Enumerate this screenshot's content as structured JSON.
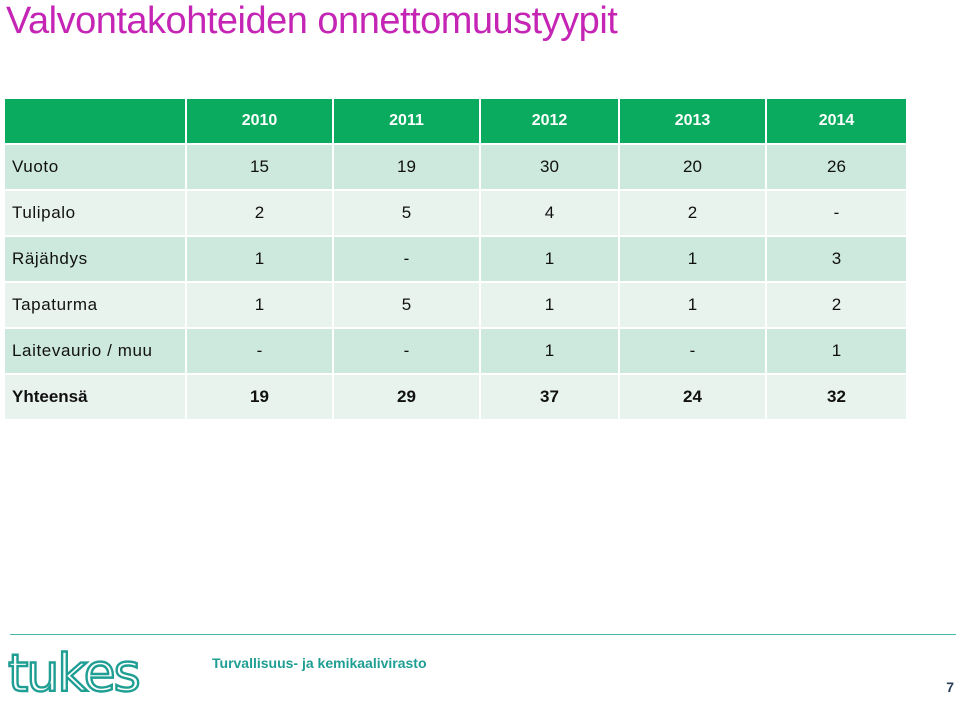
{
  "slide": {
    "title": "Valvontakohteiden onnettomuustyypit",
    "page_number": "7"
  },
  "table": {
    "corner": "",
    "years": [
      "2010",
      "2011",
      "2012",
      "2013",
      "2014"
    ],
    "rows": [
      {
        "label": "Vuoto",
        "values": [
          "15",
          "19",
          "30",
          "20",
          "26"
        ]
      },
      {
        "label": "Tulipalo",
        "values": [
          "2",
          "5",
          "4",
          "2",
          "-"
        ]
      },
      {
        "label": "Räjähdys",
        "values": [
          "1",
          "-",
          "1",
          "1",
          "3"
        ]
      },
      {
        "label": "Tapaturma",
        "values": [
          "1",
          "5",
          "1",
          "1",
          "2"
        ]
      },
      {
        "label": "Laitevaurio / muu",
        "values": [
          "-",
          "-",
          "1",
          "-",
          "1"
        ]
      }
    ],
    "total": {
      "label": "Yhteensä",
      "values": [
        "19",
        "29",
        "37",
        "24",
        "32"
      ]
    }
  },
  "footer": {
    "logo_text": "tukes",
    "agency": "Turvallisuus- ja kemikaalivirasto"
  },
  "colors": {
    "title": "#c525b4",
    "header_fill": "#0aab5e",
    "row_dark": "#cde8dc",
    "row_light": "#e8f3ee",
    "footer_teal": "#1f9e93"
  }
}
